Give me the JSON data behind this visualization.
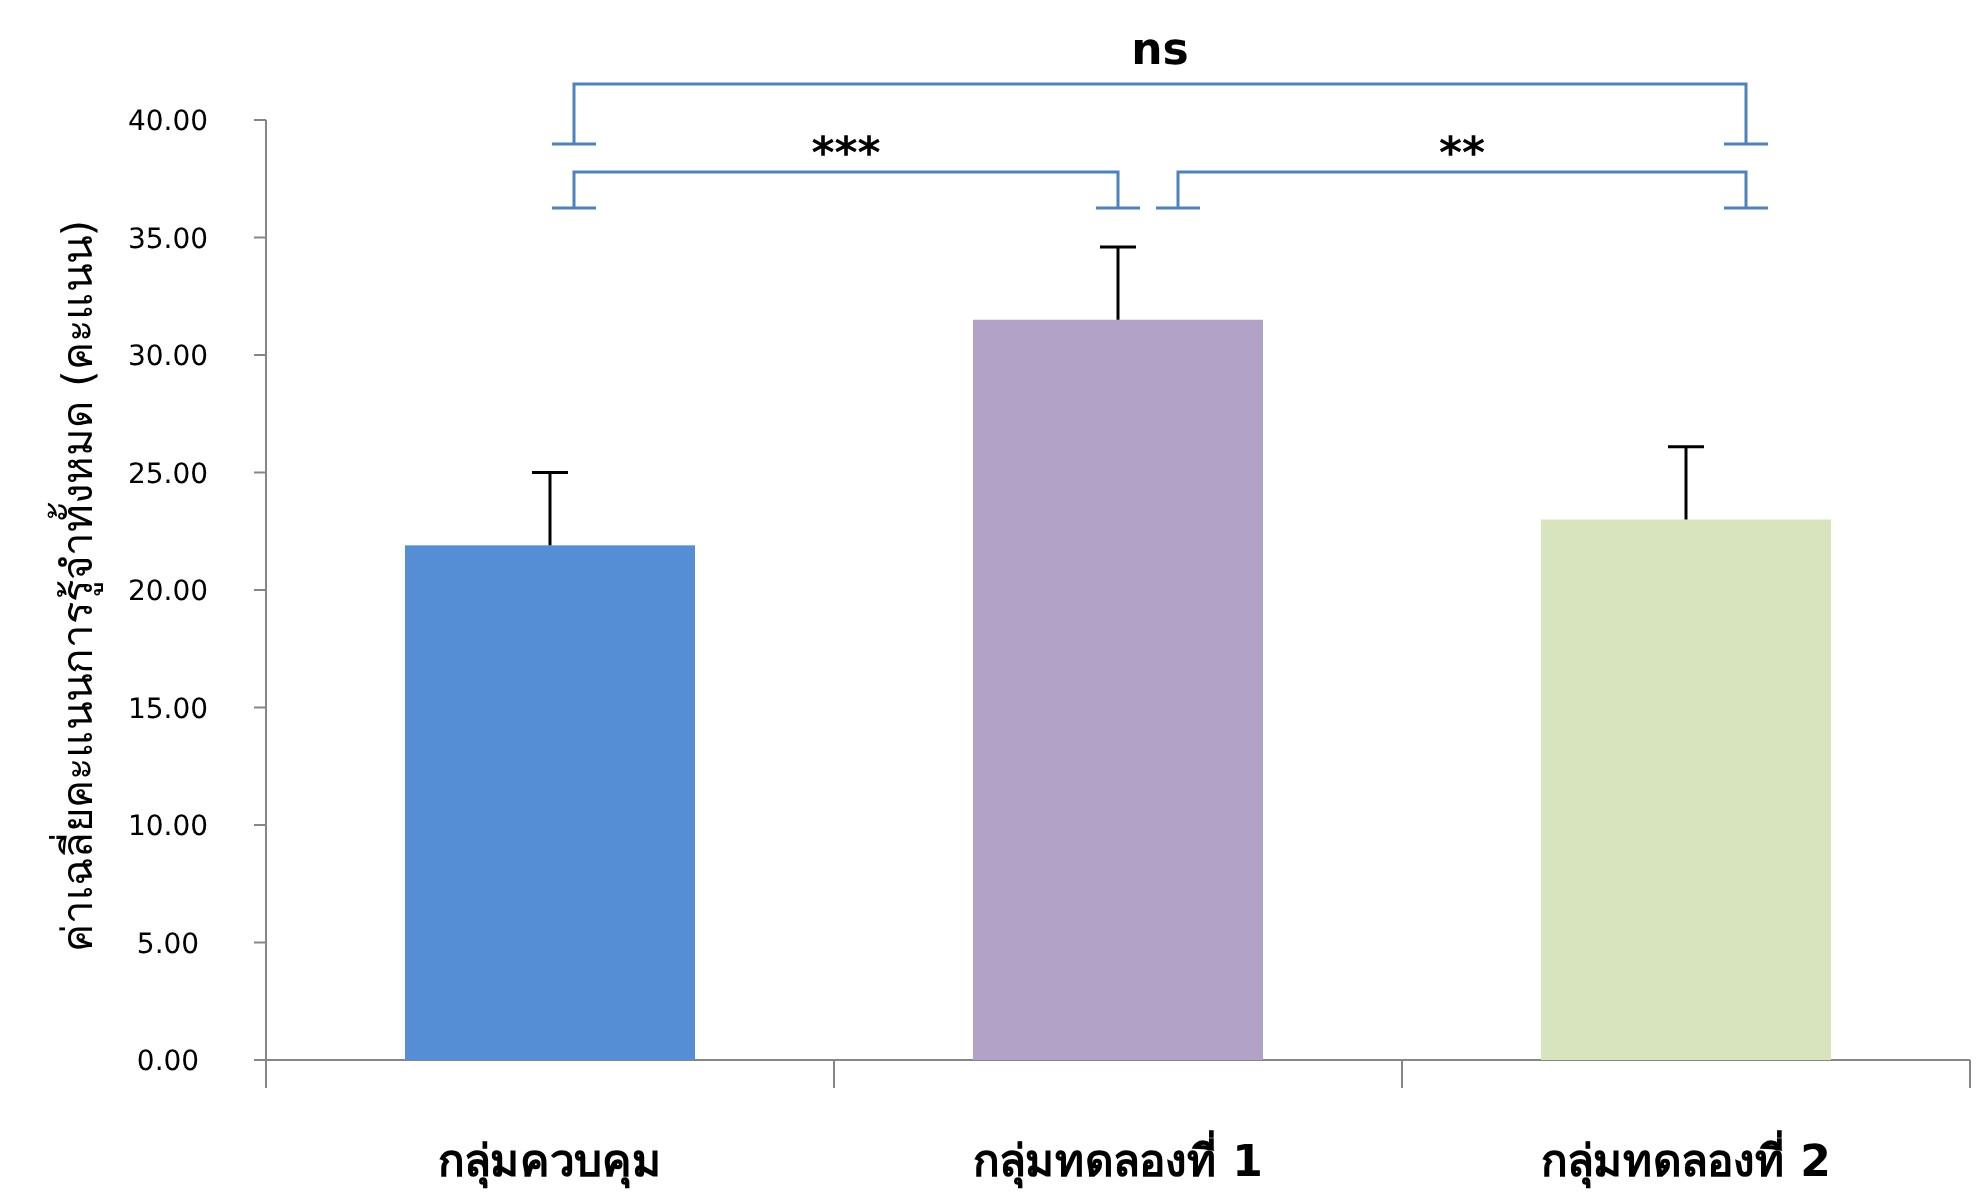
{
  "chart_data": {
    "type": "bar",
    "ylabel": "ค่าเฉลี่ยคะแนนการรู้จำทั้งหมด (คะแนน)",
    "categories": [
      "กลุ่มควบคุม",
      "กลุ่มทดลองที่ 1",
      "กลุ่มทดลองที่ 2"
    ],
    "values": [
      21.9,
      31.5,
      23.0
    ],
    "colors": [
      "#558ed5",
      "#b3a2c7",
      "#d7e4bd"
    ],
    "errors": [
      [
        21.9,
        25.0
      ],
      [
        31.5,
        34.6
      ],
      [
        23.0,
        26.1
      ]
    ],
    "ylim": [
      0,
      40
    ],
    "yticks": [
      {
        "value": 0,
        "label": "0.00"
      },
      {
        "value": 5,
        "label": "5.00"
      },
      {
        "value": 10,
        "label": "10.00"
      },
      {
        "value": 15,
        "label": "15.00"
      },
      {
        "value": 20,
        "label": "20.00"
      },
      {
        "value": 25,
        "label": "25.00"
      },
      {
        "value": 30,
        "label": "30.00"
      },
      {
        "value": 35,
        "label": "35.00"
      },
      {
        "value": 40,
        "label": "40.00"
      }
    ],
    "annotations": [
      "ns",
      "***",
      "**"
    ]
  }
}
